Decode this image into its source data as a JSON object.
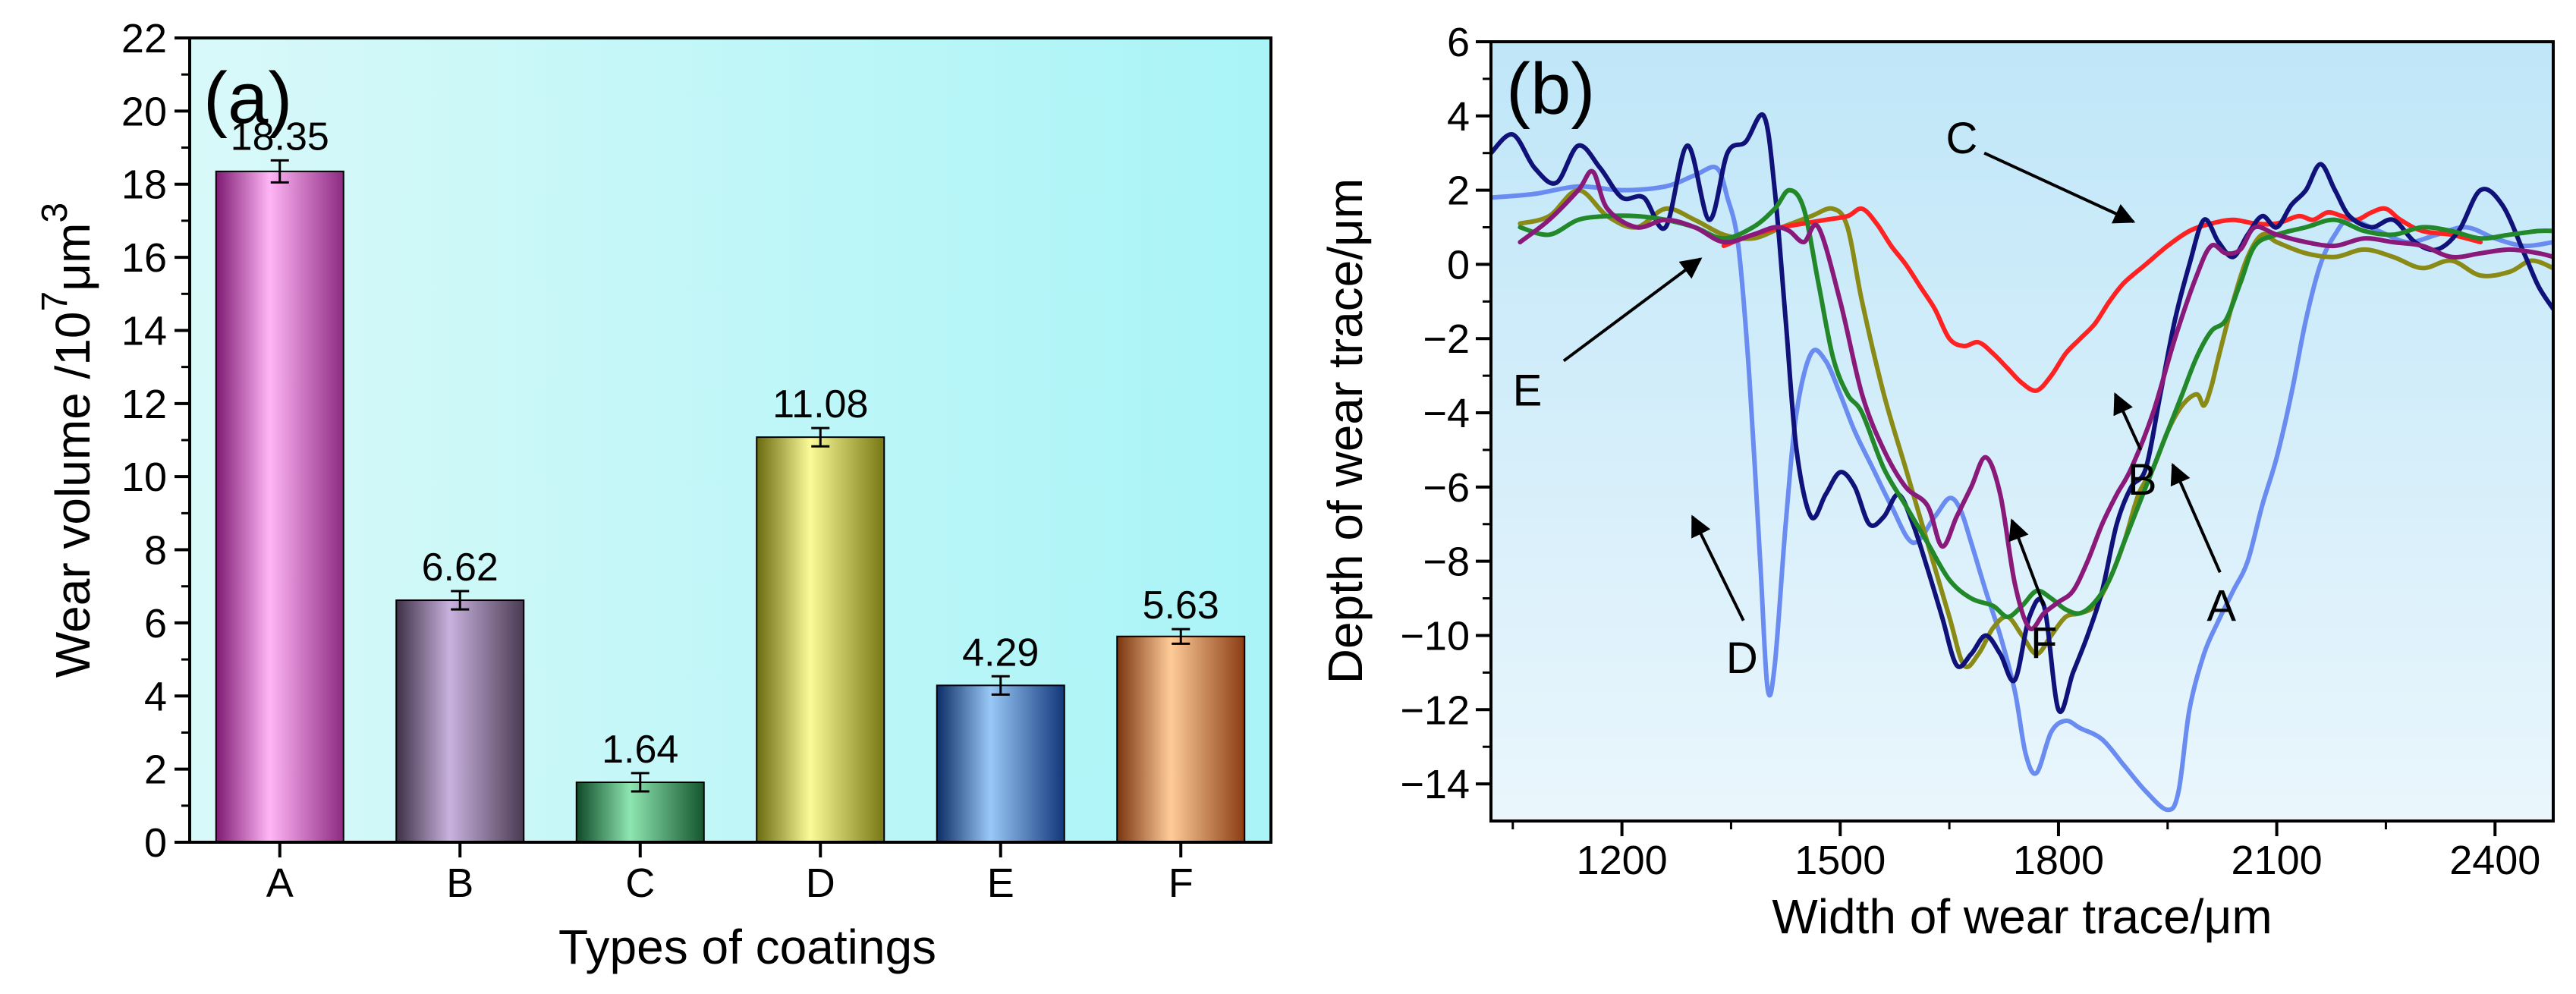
{
  "chart_data": [
    {
      "id": "a",
      "type": "bar",
      "panel_label": "(a)",
      "xlabel": "Types of coatings",
      "ylabel": "Wear volume /10",
      "ylabel_sup1": "7",
      "ylabel_mid": "μm",
      "ylabel_sup2": "3",
      "categories": [
        "A",
        "B",
        "C",
        "D",
        "E",
        "F"
      ],
      "values": [
        18.35,
        6.62,
        1.64,
        11.08,
        4.29,
        5.63
      ],
      "value_labels": [
        "18.35",
        "6.62",
        "1.64",
        "11.08",
        "4.29",
        "5.63"
      ],
      "errors": [
        0.3,
        0.25,
        0.25,
        0.25,
        0.25,
        0.2
      ],
      "ylim": [
        0,
        22
      ],
      "yticks": [
        0,
        2,
        4,
        6,
        8,
        10,
        12,
        14,
        16,
        18,
        20,
        22
      ],
      "ytick_labels": [
        "0",
        "2",
        "4",
        "6",
        "8",
        "10",
        "12",
        "14",
        "16",
        "18",
        "20",
        "22"
      ],
      "bar_colors": [
        [
          "#7e1a72",
          "#ffb6f6",
          "#8e2a82"
        ],
        [
          "#3d3046",
          "#c9b2de",
          "#4a3a52"
        ],
        [
          "#0e4a28",
          "#8ee6b0",
          "#15562f"
        ],
        [
          "#6a6a10",
          "#fbfb98",
          "#787815"
        ],
        [
          "#0d2d66",
          "#99c9f7",
          "#12377a"
        ],
        [
          "#7a3510",
          "#ffcc99",
          "#8a3d13"
        ]
      ],
      "background_colors": [
        "#d9f9f9",
        "#a9f4f7"
      ]
    },
    {
      "id": "b",
      "type": "line",
      "panel_label": "(b)",
      "xlabel": "Width of wear trace/μm",
      "ylabel": "Depth of wear trace/μm",
      "xlim": [
        1020,
        2480
      ],
      "ylim": [
        -15,
        6
      ],
      "xticks": [
        1200,
        1500,
        1800,
        2100,
        2400
      ],
      "xtick_labels": [
        "1200",
        "1500",
        "1800",
        "2100",
        "2400"
      ],
      "yticks": [
        -14,
        -12,
        -10,
        -8,
        -6,
        -4,
        -2,
        0,
        2,
        4,
        6
      ],
      "ytick_labels": [
        "−14",
        "−12",
        "−10",
        "−8",
        "−6",
        "−4",
        "−2",
        "0",
        "2",
        "4",
        "6"
      ],
      "background_colors": [
        "#bfe6f8",
        "#eaf6fc"
      ],
      "series": [
        {
          "name": "A",
          "color": "#6a8cf0",
          "x": [
            1020,
            1080,
            1140,
            1200,
            1260,
            1300,
            1330,
            1345,
            1360,
            1375,
            1390,
            1400,
            1410,
            1425,
            1440,
            1460,
            1480,
            1500,
            1520,
            1545,
            1570,
            1600,
            1630,
            1650,
            1665,
            1680,
            1700,
            1720,
            1740,
            1755,
            1770,
            1790,
            1810,
            1830,
            1860,
            1890,
            1920,
            1950,
            1965,
            1980,
            2000,
            2020,
            2040,
            2060,
            2080,
            2100,
            2120,
            2140,
            2160,
            2180,
            2200,
            2240,
            2280,
            2320,
            2360,
            2400,
            2440,
            2480
          ],
          "y": [
            1.8,
            1.9,
            2.1,
            2.0,
            2.1,
            2.4,
            2.6,
            1.8,
            0.5,
            -3.0,
            -8.0,
            -11.4,
            -10.8,
            -7.0,
            -4.0,
            -2.4,
            -2.6,
            -3.5,
            -4.5,
            -5.5,
            -6.5,
            -7.5,
            -6.8,
            -6.3,
            -6.6,
            -7.5,
            -8.8,
            -10.0,
            -11.5,
            -13.2,
            -13.7,
            -12.6,
            -12.3,
            -12.5,
            -12.8,
            -13.5,
            -14.2,
            -14.7,
            -14.2,
            -12.0,
            -10.5,
            -9.6,
            -8.8,
            -8.0,
            -6.5,
            -5.2,
            -3.5,
            -1.5,
            0.0,
            0.8,
            1.2,
            0.9,
            0.6,
            0.8,
            1.0,
            0.7,
            0.5,
            0.6
          ]
        },
        {
          "name": "B",
          "color": "#8a8a16",
          "x": [
            1060,
            1100,
            1140,
            1180,
            1220,
            1260,
            1300,
            1340,
            1380,
            1420,
            1460,
            1490,
            1510,
            1530,
            1560,
            1590,
            1620,
            1650,
            1670,
            1690,
            1710,
            1730,
            1750,
            1770,
            1790,
            1810,
            1830,
            1850,
            1870,
            1890,
            1910,
            1930,
            1950,
            1970,
            1990,
            2000,
            2010,
            2020,
            2040,
            2060,
            2080,
            2100,
            2140,
            2180,
            2220,
            2260,
            2300,
            2340,
            2380,
            2420,
            2450,
            2480
          ],
          "y": [
            1.1,
            1.3,
            2.0,
            1.3,
            1.0,
            1.5,
            1.2,
            0.8,
            0.7,
            1.0,
            1.3,
            1.5,
            1.0,
            -1.0,
            -3.5,
            -5.5,
            -7.5,
            -9.5,
            -10.8,
            -10.5,
            -9.8,
            -9.5,
            -10.0,
            -10.5,
            -10.0,
            -9.5,
            -9.4,
            -9.2,
            -8.5,
            -7.5,
            -6.2,
            -5.5,
            -4.5,
            -3.8,
            -3.5,
            -3.8,
            -3.3,
            -2.5,
            -1.0,
            0.2,
            0.8,
            0.6,
            0.3,
            0.2,
            0.4,
            0.2,
            -0.1,
            0.1,
            -0.3,
            -0.2,
            0.1,
            -0.1
          ]
        },
        {
          "name": "C",
          "color": "#ff2222",
          "x": [
            1340,
            1380,
            1420,
            1450,
            1480,
            1510,
            1530,
            1550,
            1570,
            1590,
            1610,
            1630,
            1650,
            1670,
            1690,
            1710,
            1730,
            1750,
            1770,
            1790,
            1810,
            1830,
            1850,
            1870,
            1890,
            1920,
            1950,
            1980,
            2010,
            2040,
            2070,
            2100,
            2130,
            2150,
            2170,
            2190,
            2210,
            2230,
            2250,
            2270,
            2300,
            2340,
            2380
          ],
          "y": [
            0.5,
            0.8,
            1.0,
            1.1,
            1.2,
            1.3,
            1.5,
            1.1,
            0.5,
            0.0,
            -0.6,
            -1.2,
            -2.0,
            -2.2,
            -2.1,
            -2.4,
            -2.8,
            -3.2,
            -3.4,
            -3.0,
            -2.4,
            -2.0,
            -1.6,
            -1.0,
            -0.5,
            0.0,
            0.5,
            0.9,
            1.1,
            1.2,
            1.1,
            1.1,
            1.3,
            1.2,
            1.4,
            1.3,
            1.2,
            1.4,
            1.5,
            1.2,
            0.9,
            0.8,
            0.6
          ]
        },
        {
          "name": "D",
          "color": "#10127a",
          "x": [
            1020,
            1050,
            1080,
            1110,
            1140,
            1170,
            1200,
            1230,
            1260,
            1290,
            1320,
            1345,
            1370,
            1395,
            1410,
            1425,
            1440,
            1460,
            1480,
            1500,
            1520,
            1540,
            1560,
            1580,
            1600,
            1620,
            1640,
            1660,
            1680,
            1700,
            1720,
            1740,
            1760,
            1780,
            1800,
            1820,
            1840,
            1860,
            1880,
            1900,
            1920,
            1940,
            1960,
            1980,
            2000,
            2020,
            2040,
            2060,
            2080,
            2100,
            2120,
            2140,
            2160,
            2180,
            2200,
            2230,
            2260,
            2290,
            2320,
            2350,
            2380,
            2410,
            2440,
            2460,
            2480
          ],
          "y": [
            3.0,
            3.5,
            2.6,
            2.2,
            3.2,
            2.6,
            1.8,
            1.8,
            1.0,
            3.2,
            1.2,
            3.0,
            3.3,
            4.0,
            2.0,
            -1.5,
            -5.0,
            -6.8,
            -6.2,
            -5.6,
            -6.0,
            -7.0,
            -6.8,
            -6.2,
            -7.0,
            -8.2,
            -9.5,
            -10.8,
            -10.5,
            -10.0,
            -10.5,
            -11.2,
            -9.5,
            -9.2,
            -12.0,
            -11.0,
            -10.0,
            -8.8,
            -7.0,
            -6.0,
            -5.5,
            -3.5,
            -1.5,
            0.0,
            1.2,
            0.6,
            0.2,
            0.8,
            1.3,
            1.0,
            1.6,
            2.0,
            2.7,
            2.0,
            1.3,
            1.0,
            1.2,
            0.6,
            0.4,
            0.9,
            2.0,
            1.6,
            0.3,
            -0.6,
            -1.2
          ]
        },
        {
          "name": "E",
          "color": "#22882a",
          "x": [
            1060,
            1100,
            1140,
            1180,
            1220,
            1260,
            1300,
            1340,
            1380,
            1410,
            1430,
            1450,
            1470,
            1490,
            1510,
            1530,
            1560,
            1590,
            1620,
            1650,
            1680,
            1710,
            1730,
            1750,
            1770,
            1790,
            1810,
            1830,
            1850,
            1870,
            1890,
            1910,
            1930,
            1950,
            1970,
            1990,
            2010,
            2030,
            2050,
            2070,
            2100,
            2140,
            2180,
            2220,
            2260,
            2300,
            2340,
            2380,
            2420,
            2460,
            2480
          ],
          "y": [
            1.0,
            0.8,
            1.2,
            1.3,
            1.3,
            1.2,
            1.0,
            0.7,
            1.0,
            1.5,
            2.0,
            1.5,
            -0.5,
            -2.5,
            -3.5,
            -4.0,
            -5.5,
            -6.5,
            -7.5,
            -8.5,
            -9.0,
            -9.2,
            -9.5,
            -9.2,
            -8.8,
            -9.0,
            -9.3,
            -9.4,
            -9.1,
            -8.5,
            -7.5,
            -6.5,
            -5.5,
            -4.5,
            -3.5,
            -2.5,
            -1.8,
            -1.5,
            -0.5,
            0.5,
            0.8,
            1.0,
            1.2,
            0.9,
            0.8,
            1.0,
            0.9,
            0.7,
            0.8,
            0.9,
            0.9
          ]
        },
        {
          "name": "F",
          "color": "#8a1a7a",
          "x": [
            1060,
            1100,
            1140,
            1160,
            1180,
            1220,
            1260,
            1300,
            1340,
            1380,
            1410,
            1430,
            1450,
            1470,
            1500,
            1530,
            1560,
            1590,
            1620,
            1640,
            1660,
            1680,
            1700,
            1720,
            1740,
            1760,
            1780,
            1800,
            1820,
            1840,
            1860,
            1880,
            1900,
            1930,
            1960,
            1990,
            2010,
            2030,
            2050,
            2070,
            2100,
            2140,
            2180,
            2220,
            2260,
            2300,
            2340,
            2380,
            2420,
            2460,
            2480
          ],
          "y": [
            0.6,
            1.2,
            2.0,
            2.5,
            1.5,
            1.0,
            1.2,
            1.0,
            0.6,
            0.8,
            1.0,
            0.9,
            0.6,
            1.0,
            -1.0,
            -3.5,
            -5.0,
            -6.0,
            -6.5,
            -7.6,
            -6.8,
            -6.0,
            -5.2,
            -6.2,
            -8.6,
            -9.8,
            -9.4,
            -9.1,
            -8.8,
            -8.0,
            -7.0,
            -6.2,
            -5.5,
            -4.0,
            -2.0,
            -0.3,
            0.5,
            0.3,
            0.4,
            1.0,
            0.8,
            0.6,
            0.5,
            0.7,
            0.6,
            0.5,
            0.2,
            0.3,
            0.4,
            0.3,
            0.2
          ]
        }
      ],
      "annotations": [
        {
          "label": "C",
          "text_x": 1667,
          "text_y": 3.4,
          "arrow_from_x": 1698,
          "arrow_from_y": 3.0,
          "arrow_to_x": 1903,
          "arrow_to_y": 1.15
        },
        {
          "label": "E",
          "text_x": 1070,
          "text_y": -3.4,
          "arrow_from_x": 1120,
          "arrow_from_y": -2.6,
          "arrow_to_x": 1308,
          "arrow_to_y": 0.15
        },
        {
          "label": "D",
          "text_x": 1365,
          "text_y": -10.6,
          "arrow_from_x": 1367,
          "arrow_from_y": -9.6,
          "arrow_to_x": 1297,
          "arrow_to_y": -6.8
        },
        {
          "label": "F",
          "text_x": 1780,
          "text_y": -10.2,
          "arrow_from_x": 1780,
          "arrow_from_y": -9.2,
          "arrow_to_x": 1736,
          "arrow_to_y": -6.9
        },
        {
          "label": "B",
          "text_x": 1915,
          "text_y": -5.8,
          "arrow_from_x": 1913,
          "arrow_from_y": -5.0,
          "arrow_to_x": 1878,
          "arrow_to_y": -3.5
        },
        {
          "label": "A",
          "text_x": 2024,
          "text_y": -9.2,
          "arrow_from_x": 2022,
          "arrow_from_y": -8.3,
          "arrow_to_x": 1957,
          "arrow_to_y": -5.4
        }
      ]
    }
  ]
}
